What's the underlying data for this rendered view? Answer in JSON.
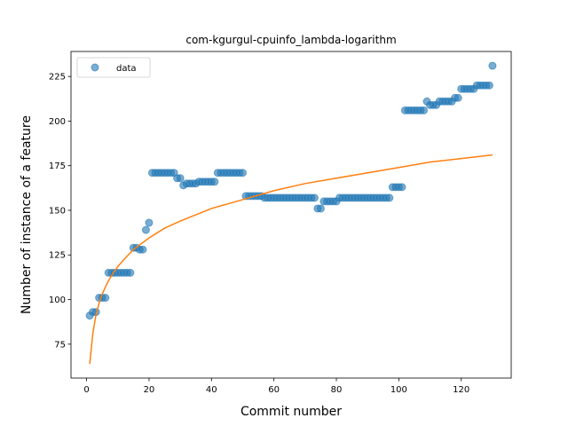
{
  "chart_data": {
    "type": "scatter",
    "title": "com-kgurgul-cpuinfo_lambda-logarithm",
    "xlabel": "Commit number",
    "ylabel": "Number of instance of a feature",
    "xlim": [
      -5,
      136
    ],
    "ylim": [
      56,
      239
    ],
    "x_ticks": [
      0,
      20,
      40,
      60,
      80,
      100,
      120
    ],
    "y_ticks": [
      75,
      100,
      125,
      150,
      175,
      200,
      225
    ],
    "legend": {
      "placement": "top-left",
      "entries": [
        "data"
      ]
    },
    "grid": false,
    "colors": {
      "points": "#1f77b4",
      "fit": "#ff7f0e"
    },
    "series": [
      {
        "name": "data",
        "style": "points",
        "x": [
          1,
          2,
          3,
          4,
          5,
          6,
          7,
          8,
          9,
          10,
          11,
          12,
          13,
          14,
          15,
          16,
          17,
          18,
          19,
          20,
          21,
          22,
          23,
          24,
          25,
          26,
          27,
          28,
          29,
          30,
          31,
          32,
          33,
          34,
          35,
          36,
          37,
          38,
          39,
          40,
          41,
          42,
          43,
          44,
          45,
          46,
          47,
          48,
          49,
          50,
          51,
          52,
          53,
          54,
          55,
          56,
          57,
          58,
          59,
          60,
          61,
          62,
          63,
          64,
          65,
          66,
          67,
          68,
          69,
          70,
          71,
          72,
          73,
          74,
          75,
          76,
          77,
          78,
          79,
          80,
          81,
          82,
          83,
          84,
          85,
          86,
          87,
          88,
          89,
          90,
          91,
          92,
          93,
          94,
          95,
          96,
          97,
          98,
          99,
          100,
          101,
          102,
          103,
          104,
          105,
          106,
          107,
          108,
          109,
          110,
          111,
          112,
          113,
          114,
          115,
          116,
          117,
          118,
          119,
          120,
          121,
          122,
          123,
          124,
          125,
          126,
          127,
          128,
          129,
          130
        ],
        "y": [
          91,
          93,
          93,
          101,
          101,
          101,
          115,
          115,
          115,
          115,
          115,
          115,
          115,
          115,
          129,
          129,
          128,
          128,
          139,
          143,
          171,
          171,
          171,
          171,
          171,
          171,
          171,
          171,
          168,
          168,
          164,
          165,
          165,
          165,
          165,
          166,
          166,
          166,
          166,
          166,
          166,
          171,
          171,
          171,
          171,
          171,
          171,
          171,
          171,
          171,
          158,
          158,
          158,
          158,
          158,
          158,
          157,
          157,
          157,
          157,
          157,
          157,
          157,
          157,
          157,
          157,
          157,
          157,
          157,
          157,
          157,
          157,
          157,
          151,
          151,
          155,
          155,
          155,
          155,
          155,
          157,
          157,
          157,
          157,
          157,
          157,
          157,
          157,
          157,
          157,
          157,
          157,
          157,
          157,
          157,
          157,
          157,
          163,
          163,
          163,
          163,
          206,
          206,
          206,
          206,
          206,
          206,
          206,
          211,
          209,
          209,
          209,
          211,
          211,
          211,
          211,
          211,
          213,
          213,
          218,
          218,
          218,
          218,
          218,
          220,
          220,
          220,
          220,
          220,
          231
        ]
      },
      {
        "name": "",
        "style": "line",
        "x": [
          1,
          2,
          3,
          4,
          5,
          6,
          7,
          8,
          10,
          12,
          15,
          20,
          25,
          30,
          40,
          50,
          60,
          70,
          80,
          90,
          100,
          110,
          120,
          130
        ],
        "y": [
          64,
          81,
          91.5,
          98,
          103,
          107,
          110.5,
          113.5,
          118.5,
          122.5,
          128,
          134.5,
          140,
          144,
          151,
          156,
          161,
          165,
          168,
          171,
          174,
          177,
          179,
          181
        ]
      }
    ]
  }
}
